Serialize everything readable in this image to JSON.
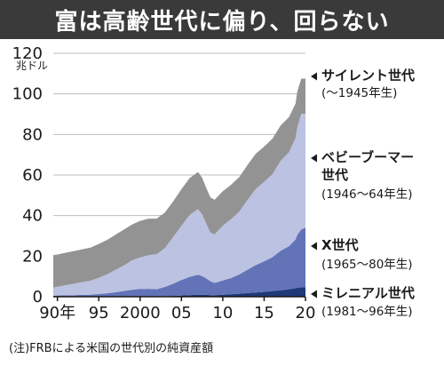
{
  "chart_data": {
    "type": "area",
    "stacked": true,
    "title": "富は高齢世代に偏り、回らない",
    "ylabel": "兆ドル",
    "ylim": [
      0,
      120
    ],
    "y_ticks": [
      0,
      20,
      40,
      60,
      80,
      100,
      120
    ],
    "x_ticks": [
      "90年",
      "95",
      "2000",
      "05",
      "10",
      "15",
      "20"
    ],
    "x_tick_years": [
      1990,
      1995,
      2000,
      2005,
      2010,
      2015,
      2020
    ],
    "xlim": [
      1989.5,
      2020.0
    ],
    "grid": true,
    "legend_position": "right",
    "note": "(注)FRBによる米国の世代別の純資産額",
    "x": [
      1989.5,
      1990,
      1991,
      1992,
      1993,
      1994,
      1995,
      1996,
      1997,
      1998,
      1999,
      2000,
      2001,
      2002,
      2003,
      2004,
      2005,
      2006,
      2007,
      2007.5,
      2008,
      2008.5,
      2009,
      2010,
      2011,
      2012,
      2013,
      2014,
      2015,
      2016,
      2017,
      2018,
      2018.8,
      2019,
      2019.5,
      2020
    ],
    "series": [
      {
        "name": "ミレニアル世代",
        "range": "(1981〜96年生)",
        "color": "#1f3a78",
        "values": [
          0,
          0,
          0,
          0,
          0,
          0,
          0,
          0,
          0,
          0,
          0,
          0,
          0.1,
          0.2,
          0.3,
          0.4,
          0.6,
          0.8,
          1.0,
          1.0,
          0.9,
          0.8,
          0.8,
          1.0,
          1.2,
          1.5,
          1.8,
          2.1,
          2.4,
          2.8,
          3.2,
          3.7,
          4.2,
          4.4,
          4.7,
          4.6
        ]
      },
      {
        "name": "X世代",
        "range": "(1965〜80年生)",
        "color": "#6273b8",
        "values": [
          0.5,
          0.6,
          0.7,
          0.8,
          0.9,
          1.0,
          1.3,
          1.7,
          2.2,
          2.8,
          3.4,
          3.8,
          3.8,
          3.5,
          4.5,
          6.0,
          7.6,
          9.0,
          9.8,
          9.2,
          8.1,
          6.8,
          6.0,
          7.0,
          8.0,
          9.5,
          11.5,
          13.5,
          15.0,
          16.7,
          19.5,
          21.2,
          24.0,
          26.0,
          28.5,
          29.4
        ]
      },
      {
        "name": "ベビーブーマー世代",
        "range": "(1946〜64年生)",
        "color": "#bcc2e1",
        "values": [
          4.0,
          4.3,
          5.0,
          5.6,
          6.3,
          6.9,
          8.0,
          9.3,
          11.0,
          12.5,
          14.5,
          15.6,
          16.6,
          17.2,
          19.2,
          23.0,
          26.8,
          30.5,
          32.4,
          30.5,
          27.0,
          24.0,
          24.0,
          27.0,
          29.0,
          31.0,
          34.5,
          37.5,
          39.2,
          40.9,
          44.3,
          46.3,
          50.0,
          53.0,
          57.0,
          56.2
        ]
      },
      {
        "name": "サイレント世代",
        "range": "(〜1945年生)",
        "color": "#939393",
        "values": [
          16.0,
          15.9,
          16.0,
          16.1,
          16.2,
          16.3,
          16.7,
          17.0,
          17.3,
          17.7,
          17.6,
          18.0,
          18.0,
          17.6,
          17.5,
          17.6,
          18.0,
          18.2,
          18.3,
          18.0,
          17.6,
          17.4,
          17.0,
          17.0,
          17.0,
          17.0,
          17.2,
          17.4,
          17.4,
          17.5,
          17.5,
          17.3,
          17.0,
          17.6,
          17.3,
          17.3
        ]
      }
    ]
  }
}
